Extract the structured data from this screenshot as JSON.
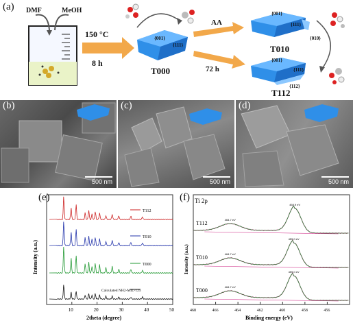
{
  "panel_a": {
    "label": "(a)",
    "beaker_solvent_1": "DMF",
    "beaker_solvent_2": "MeOH",
    "condition_temp": "150 °C",
    "condition_time": "8 h",
    "sample_t000": "T000",
    "arrow_aa": "AA",
    "arrow_72h": "72 h",
    "sample_t010": "T010",
    "sample_t112": "T112",
    "facet_001": "{001}",
    "facet_111": "{111}",
    "facet_010": "{010}",
    "facet_112": "{112}"
  },
  "panel_b": {
    "label": "(b)",
    "scale": "500 nm"
  },
  "panel_c": {
    "label": "(c)",
    "scale": "500 nm"
  },
  "panel_d": {
    "label": "(d)",
    "scale": "500 nm"
  },
  "panel_e": {
    "label": "(e)",
    "chart_data": {
      "type": "line",
      "xlabel": "2theta (degree)",
      "ylabel": "Intensity (a.u.)",
      "xlim": [
        0,
        50
      ],
      "x_ticks": [
        10,
        20,
        30,
        40,
        50
      ],
      "series": [
        {
          "name": "T112",
          "color": "#cc2222"
        },
        {
          "name": "T010",
          "color": "#2233aa"
        },
        {
          "name": "T000",
          "color": "#229933"
        },
        {
          "name": "Calculated NH2-MIL-125",
          "color": "#111111"
        }
      ],
      "peaks_2theta": [
        6.8,
        9.7,
        11.7,
        15.3,
        16.7,
        18.0,
        19.3,
        21.0,
        23.5,
        26.0,
        28.6,
        33.4,
        38.0
      ]
    }
  },
  "panel_f": {
    "label": "(f)",
    "title": "Ti 2p",
    "chart_data": {
      "type": "line",
      "xlabel": "Binding energy (eV)",
      "ylabel": "Intensity (a.u.)",
      "xlim": [
        468,
        454
      ],
      "x_ticks": [
        468,
        466,
        464,
        462,
        460,
        458,
        456
      ],
      "series": [
        {
          "name": "T112",
          "peaks": [
            {
              "x": 464.7,
              "label": "464.7 eV"
            },
            {
              "x": 458.9,
              "label": "458.9 eV"
            }
          ]
        },
        {
          "name": "T010",
          "peaks": [
            {
              "x": 464.7,
              "label": "464.7 eV"
            },
            {
              "x": 459.0,
              "label": "459.0 eV"
            }
          ]
        },
        {
          "name": "T000",
          "peaks": [
            {
              "x": 464.7,
              "label": "464.7 eV"
            },
            {
              "x": 459.0,
              "label": "459.0 eV"
            }
          ]
        }
      ],
      "colors": {
        "data": "#d0308a",
        "fit": "#2a8a3a"
      }
    }
  }
}
